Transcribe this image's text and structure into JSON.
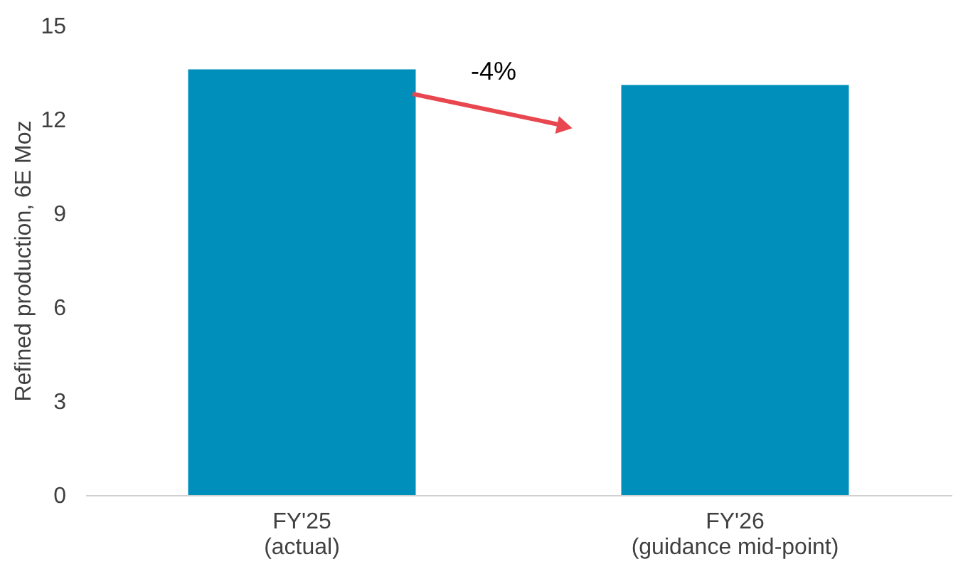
{
  "chart_data": {
    "type": "bar",
    "ylabel": "Refined production, 6E Moz",
    "categories": [
      "FY'25\n(actual)",
      "FY'26\n(guidance mid-point)"
    ],
    "values": [
      13.6,
      13.1
    ],
    "color": "#008fbb",
    "ylim": [
      0,
      15
    ],
    "yticks": [
      0,
      3,
      6,
      9,
      12,
      15
    ],
    "grid": false,
    "annotations": [
      "-4%"
    ]
  }
}
